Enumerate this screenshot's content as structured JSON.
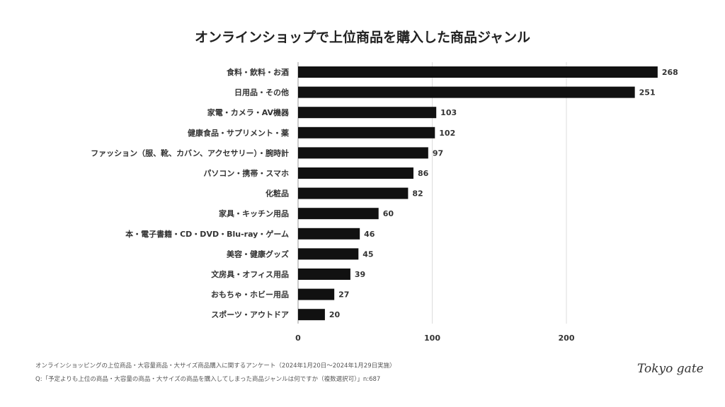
{
  "chart_data": {
    "type": "bar",
    "orientation": "horizontal",
    "title": "オンラインショップで上位商品を購入した商品ジャンル",
    "categories": [
      "食料・飲料・お酒",
      "日用品・その他",
      "家電・カメラ・AV機器",
      "健康食品・サプリメント・薬",
      "ファッション（服、靴、カバン、アクセサリー）・腕時計",
      "パソコン・携帯・スマホ",
      "化粧品",
      "家具・キッチン用品",
      "本・電子書籍・CD・DVD・Blu-ray・ゲーム",
      "美容・健康グッズ",
      "文房具・オフィス用品",
      "おもちゃ・ホビー用品",
      "スポーツ・アウトドア"
    ],
    "values": [
      268,
      251,
      103,
      102,
      97,
      86,
      82,
      60,
      46,
      45,
      39,
      27,
      20
    ],
    "xticks": [
      "0",
      "100",
      "200"
    ],
    "xlim": [
      0,
      300
    ],
    "grid": true,
    "bar_color": "#111111"
  },
  "footer": {
    "source": "オンラインショッピングの上位商品・大容量商品・大サイズ商品購入に関するアンケート（2024年1月20日〜2024年1月29日実施）",
    "question": "Q:「予定よりも上位の商品・大容量の商品・大サイズの商品を購入してしまった商品ジャンルは何ですか（複数選択可）」n:687",
    "logo": "Tokyo gate"
  }
}
